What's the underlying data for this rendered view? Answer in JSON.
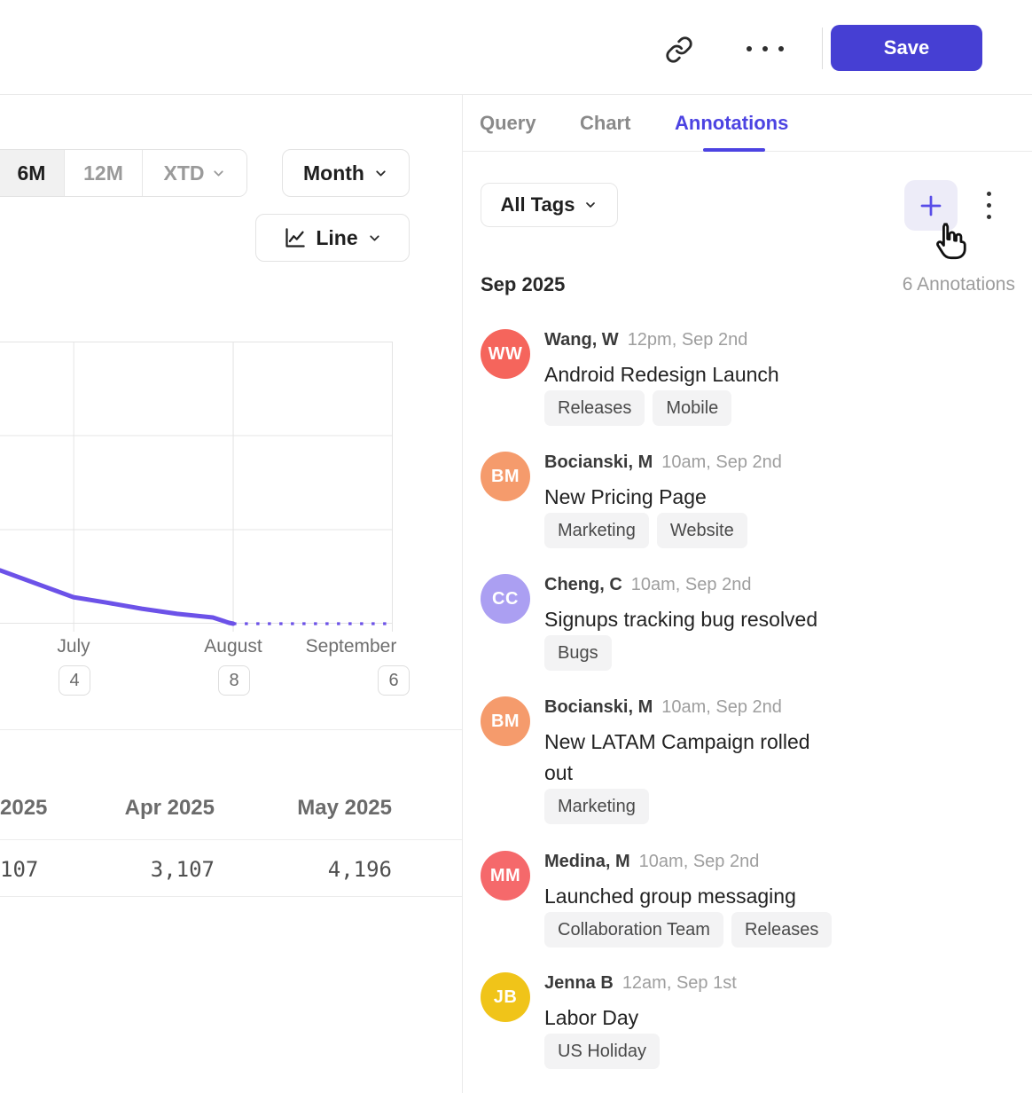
{
  "header": {
    "save_label": "Save"
  },
  "tabs": {
    "query": "Query",
    "chart": "Chart",
    "annotations": "Annotations"
  },
  "chart_controls": {
    "range_6m": "6M",
    "range_12m": "12M",
    "range_xtd": "XTD",
    "granularity": "Month",
    "chart_type": "Line"
  },
  "chart_data": {
    "type": "line",
    "x_labels": [
      "July",
      "August",
      "September"
    ],
    "annotation_counts": [
      "4",
      "8",
      "6"
    ],
    "y_axis_labels_visible": false,
    "grid": {
      "v_frac": [
        0.187,
        0.594,
        1.0
      ],
      "h_frac": [
        0,
        0.333,
        0.667,
        1.0
      ]
    },
    "line_color": "#6C52E8",
    "series": [
      {
        "name": "actual",
        "style": "solid",
        "points_frac": [
          [
            0,
            0.811
          ],
          [
            0.187,
            0.906
          ],
          [
            0.271,
            0.925
          ],
          [
            0.361,
            0.947
          ],
          [
            0.451,
            0.965
          ],
          [
            0.542,
            0.978
          ],
          [
            0.583,
            0.997
          ],
          [
            0.594,
            1.0
          ]
        ]
      },
      {
        "name": "projected",
        "style": "dotted",
        "points_frac": [
          [
            0.594,
            1.0
          ],
          [
            1.0,
            1.0
          ]
        ]
      }
    ]
  },
  "table": {
    "columns": [
      {
        "header": "2025",
        "value": "107"
      },
      {
        "header": "Apr 2025",
        "value": "3,107"
      },
      {
        "header": "May 2025",
        "value": "4,196"
      }
    ]
  },
  "annotations_panel": {
    "filter_label": "All Tags",
    "month_header": "Sep 2025",
    "count_label": "6 Annotations",
    "items": [
      {
        "initials": "WW",
        "color": "#F5655C",
        "author": "Wang, W",
        "time": "12pm, Sep 2nd",
        "title": "Android Redesign Launch",
        "tags": [
          "Releases",
          "Mobile"
        ]
      },
      {
        "initials": "BM",
        "color": "#F59B6C",
        "author": "Bocianski, M",
        "time": "10am, Sep 2nd",
        "title": "New Pricing Page",
        "tags": [
          "Marketing",
          "Website"
        ]
      },
      {
        "initials": "CC",
        "color": "#AB9FF2",
        "author": "Cheng, C",
        "time": "10am, Sep 2nd",
        "title": "Signups tracking bug resolved",
        "tags": [
          "Bugs"
        ]
      },
      {
        "initials": "BM",
        "color": "#F59B6C",
        "author": "Bocianski, M",
        "time": "10am, Sep 2nd",
        "title": "New LATAM Campaign rolled out",
        "tags": [
          "Marketing"
        ]
      },
      {
        "initials": "MM",
        "color": "#F5696B",
        "author": "Medina, M",
        "time": "10am, Sep 2nd",
        "title": "Launched group messaging",
        "tags": [
          "Collaboration Team",
          "Releases"
        ]
      },
      {
        "initials": "JB",
        "color": "#F0C419",
        "author": "Jenna B",
        "time": "12am, Sep 1st",
        "title": "Labor Day",
        "tags": [
          "US Holiday"
        ]
      }
    ]
  },
  "colors": {
    "accent": "#4C43E2",
    "save_bg": "#463FD3",
    "line": "#6C52E8",
    "pill_bg": "#F3F3F4",
    "grid": "#E4E4E4"
  }
}
